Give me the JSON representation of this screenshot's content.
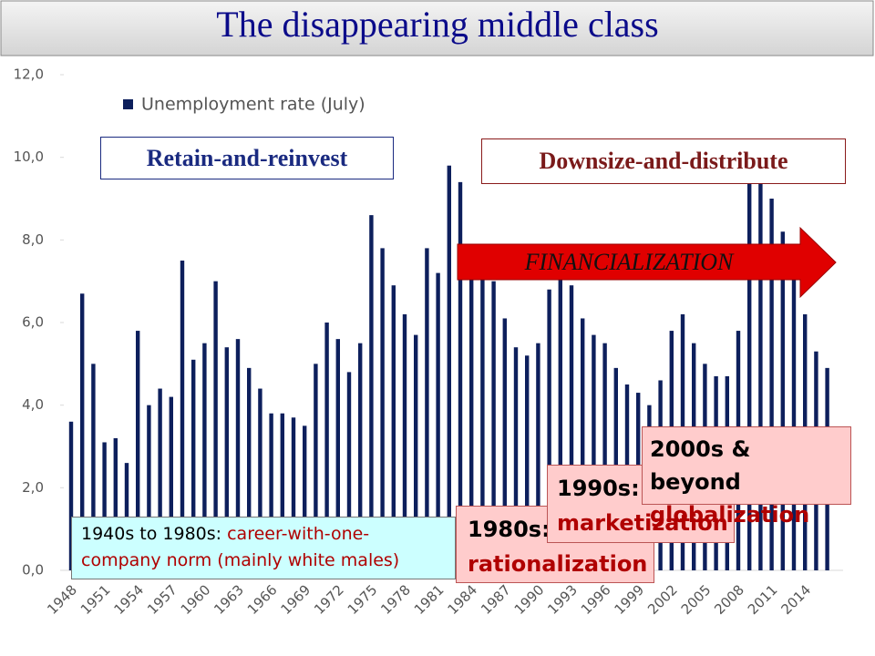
{
  "chart_data": {
    "type": "bar",
    "title": "The disappearing middle class",
    "series": [
      {
        "name": "Unemployment rate (July)",
        "color": "#0d1f5c",
        "values": [
          3.6,
          6.7,
          5.0,
          3.1,
          3.2,
          2.6,
          5.8,
          4.0,
          4.4,
          4.2,
          7.5,
          5.1,
          5.5,
          7.0,
          5.4,
          5.6,
          4.9,
          4.4,
          3.8,
          3.8,
          3.7,
          3.5,
          5.0,
          6.0,
          5.6,
          4.8,
          5.5,
          8.6,
          7.8,
          6.9,
          6.2,
          5.7,
          7.8,
          7.2,
          9.8,
          9.4,
          7.5,
          7.4,
          7.0,
          6.1,
          5.4,
          5.2,
          5.5,
          6.8,
          7.7,
          6.9,
          6.1,
          5.7,
          5.5,
          4.9,
          4.5,
          4.3,
          4.0,
          4.6,
          5.8,
          6.2,
          5.5,
          5.0,
          4.7,
          4.7,
          5.8,
          9.5,
          9.4,
          9.0,
          8.2,
          7.3,
          6.2,
          5.3,
          4.9
        ]
      }
    ],
    "categories": [
      "1948",
      null,
      null,
      "1951",
      null,
      null,
      "1954",
      null,
      null,
      "1957",
      null,
      null,
      "1960",
      null,
      null,
      "1963",
      null,
      null,
      "1966",
      null,
      null,
      "1969",
      null,
      null,
      "1972",
      null,
      null,
      "1975",
      null,
      null,
      "1978",
      null,
      null,
      "1981",
      null,
      null,
      "1984",
      null,
      null,
      "1987",
      null,
      null,
      "1990",
      null,
      null,
      "1993",
      null,
      null,
      "1996",
      null,
      null,
      "1999",
      null,
      null,
      "2002",
      null,
      null,
      "2005",
      null,
      null,
      "2008",
      null,
      null,
      "2011",
      null,
      null,
      "2014",
      null,
      null
    ],
    "ylim": [
      0,
      12
    ],
    "yticks": [
      {
        "value": 0,
        "label": "0,0"
      },
      {
        "value": 2,
        "label": "2,0"
      },
      {
        "value": 4,
        "label": "4,0"
      },
      {
        "value": 6,
        "label": "6,0"
      },
      {
        "value": 8,
        "label": "8,0"
      },
      {
        "value": 10,
        "label": "10,0"
      },
      {
        "value": 12,
        "label": "12,0"
      }
    ],
    "legend": "top-left",
    "annotations": [
      {
        "text": "Retain-and-reinvest"
      },
      {
        "text": "Downsize-and-distribute"
      },
      {
        "text": "FINANCIALIZATION"
      },
      {
        "label": "1940s to 1980s:",
        "text": "career-with-one-company norm (mainly white males)"
      },
      {
        "label": "1980s:",
        "text": "rationalization"
      },
      {
        "label": "1990s:",
        "text": "marketization"
      },
      {
        "label": "2000s & beyond",
        "text": "globalization"
      }
    ]
  }
}
